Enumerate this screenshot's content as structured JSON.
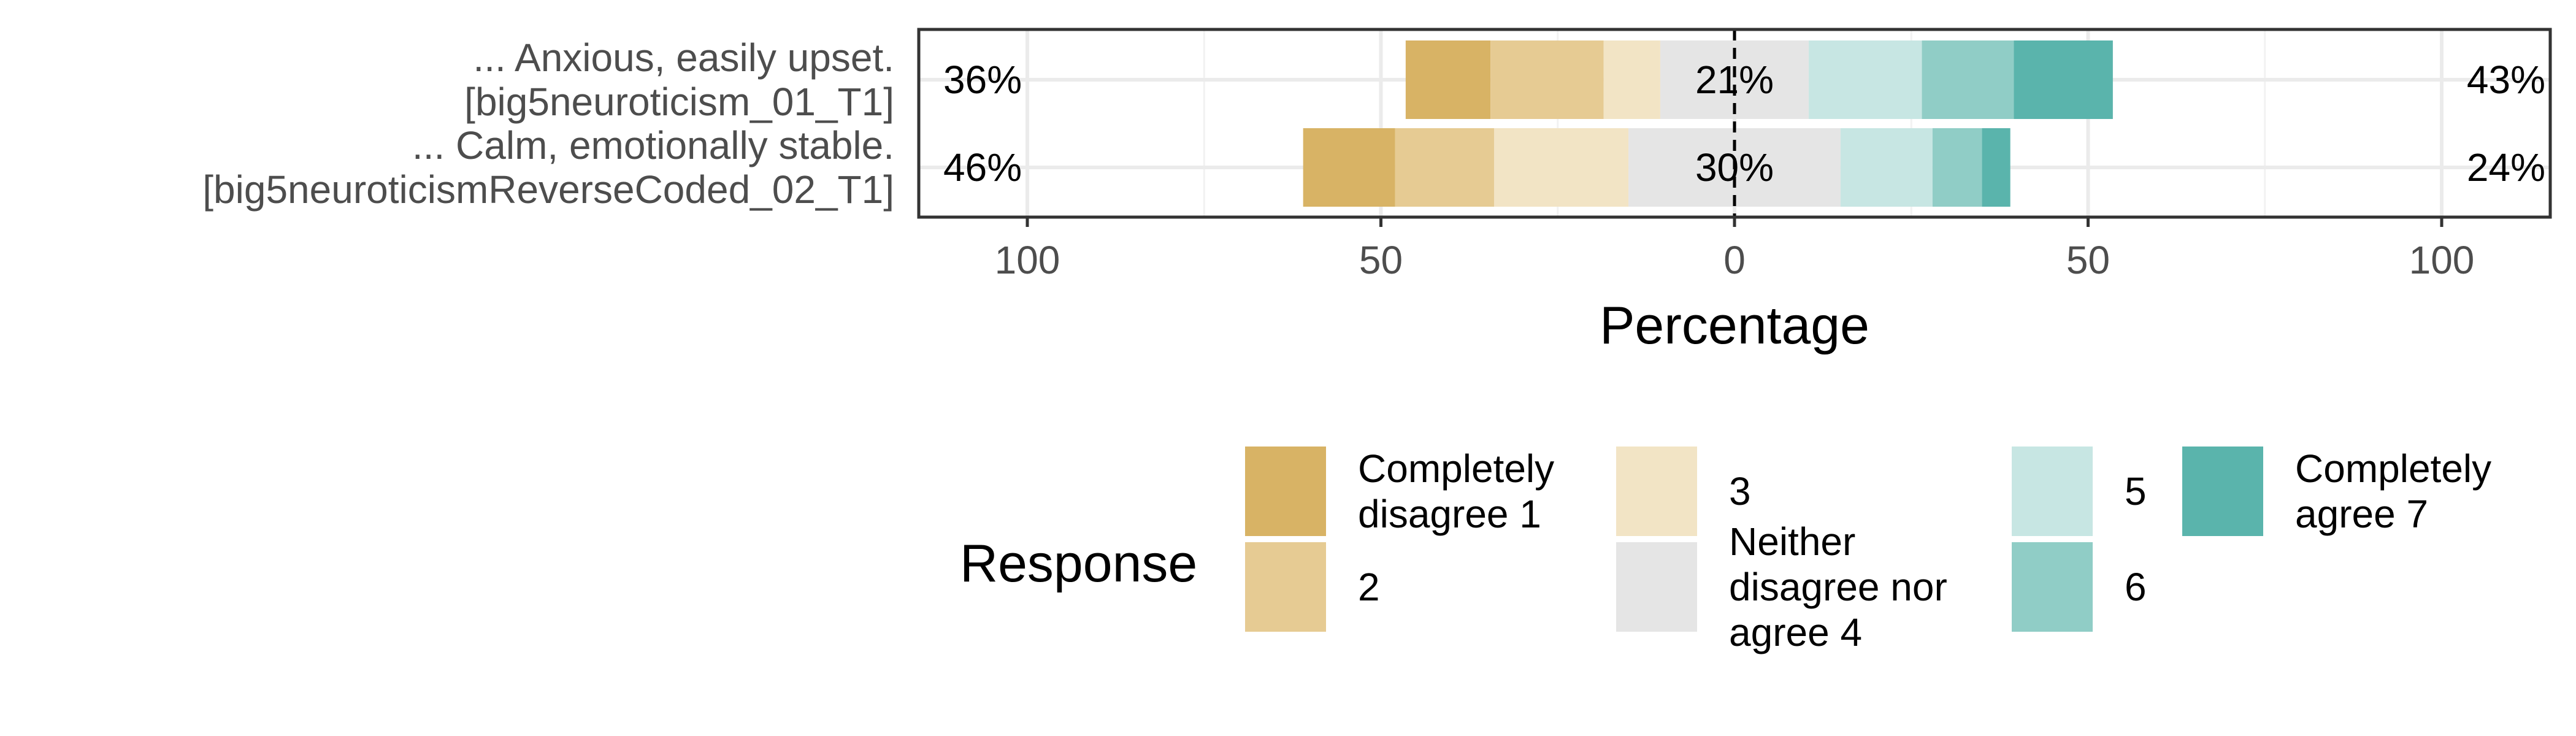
{
  "chart_data": {
    "type": "bar",
    "orientation": "horizontal",
    "stacked": "diverging",
    "categories": [
      "... Anxious, easily upset.\n[big5neuroticism_01_T1]",
      "... Calm, emotionally stable.\n[big5neuroticismReverseCoded_02_T1]"
    ],
    "series": [
      {
        "name": "Completely\ndisagree 1",
        "color": "#d8b365",
        "values": [
          12,
          13
        ]
      },
      {
        "name": "2",
        "color": "#e6cb93",
        "values": [
          16,
          14
        ]
      },
      {
        "name": "3",
        "color": "#f2e4c5",
        "values": [
          8,
          19
        ]
      },
      {
        "name": "Neither\ndisagree nor\nagree 4",
        "color": "#e5e5e5",
        "values": [
          21,
          30
        ]
      },
      {
        "name": "5",
        "color": "#c7e6e3",
        "values": [
          16,
          13
        ]
      },
      {
        "name": "6",
        "color": "#90cdc6",
        "values": [
          13,
          7
        ]
      },
      {
        "name": "Completely\nagree 7",
        "color": "#5ab4ac",
        "values": [
          14,
          4
        ]
      }
    ],
    "left_pct_labels": [
      "36%",
      "46%"
    ],
    "center_pct_labels": [
      "21%",
      "30%"
    ],
    "right_pct_labels": [
      "43%",
      "24%"
    ],
    "xlabel": "Percentage",
    "xticks": [
      -100,
      -50,
      0,
      50,
      100
    ],
    "xtick_labels": [
      "100",
      "50",
      "0",
      "50",
      "100"
    ],
    "xlim": [
      -100,
      100
    ],
    "grid": true,
    "legend_title": "Response",
    "legend_position": "bottom"
  }
}
